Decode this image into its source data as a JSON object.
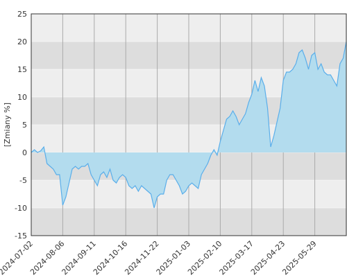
{
  "chart_data": {
    "type": "area",
    "y_label": "[Zmiany %]",
    "categories": [
      "2024-07-02",
      null,
      null,
      null,
      null,
      null,
      null,
      null,
      null,
      null,
      "2024-08-06",
      null,
      null,
      null,
      null,
      null,
      null,
      null,
      null,
      null,
      "2024-09-11",
      null,
      null,
      null,
      null,
      null,
      null,
      null,
      null,
      null,
      "2024-10-16",
      null,
      null,
      null,
      null,
      null,
      null,
      null,
      null,
      null,
      "2024-11-22",
      null,
      null,
      null,
      null,
      null,
      null,
      null,
      null,
      null,
      "2025-01-03",
      null,
      null,
      null,
      null,
      null,
      null,
      null,
      null,
      null,
      "2025-02-10",
      null,
      null,
      null,
      null,
      null,
      null,
      null,
      null,
      null,
      "2025-03-17",
      null,
      null,
      null,
      null,
      null,
      null,
      null,
      null,
      null,
      "2025-04-23",
      null,
      null,
      null,
      null,
      null,
      null,
      null,
      null,
      null,
      "2025-05-29",
      null,
      null,
      null,
      null,
      null,
      null,
      null,
      null,
      null,
      null
    ],
    "values": [
      0,
      0.5,
      0,
      0.3,
      1,
      -2,
      -2.5,
      -3,
      -4,
      -4,
      -9.5,
      -8,
      -5.5,
      -3,
      -2.5,
      -3,
      -2.5,
      -2.5,
      -2,
      -4,
      -5,
      -6,
      -4,
      -3.5,
      -4.5,
      -3,
      -5,
      -5.5,
      -4.5,
      -4,
      -4.5,
      -6,
      -6.5,
      -6,
      -7,
      -6,
      -6.5,
      -7,
      -7.5,
      -10,
      -8,
      -7.5,
      -7.5,
      -5,
      -4,
      -4,
      -5,
      -6,
      -7.5,
      -7,
      -6,
      -5.5,
      -6,
      -6.5,
      -4,
      -3,
      -2,
      -0.5,
      0.5,
      -0.5,
      2,
      4,
      6,
      6.5,
      7.5,
      6.5,
      5,
      6,
      7,
      9,
      10.5,
      13,
      11,
      13.5,
      12,
      8,
      1,
      3,
      5.5,
      8,
      13,
      14.5,
      14.5,
      15,
      16,
      18,
      18.5,
      17,
      15,
      17.5,
      18,
      15,
      16,
      14.5,
      14,
      14,
      13,
      12,
      16,
      17,
      20
    ],
    "color": "#5aaeea",
    "fill": "#b3dcee",
    "ylim": [
      -15,
      25
    ],
    "yticks": [
      -15,
      -10,
      -5,
      0,
      5,
      10,
      15,
      20,
      25
    ],
    "grid": true
  }
}
